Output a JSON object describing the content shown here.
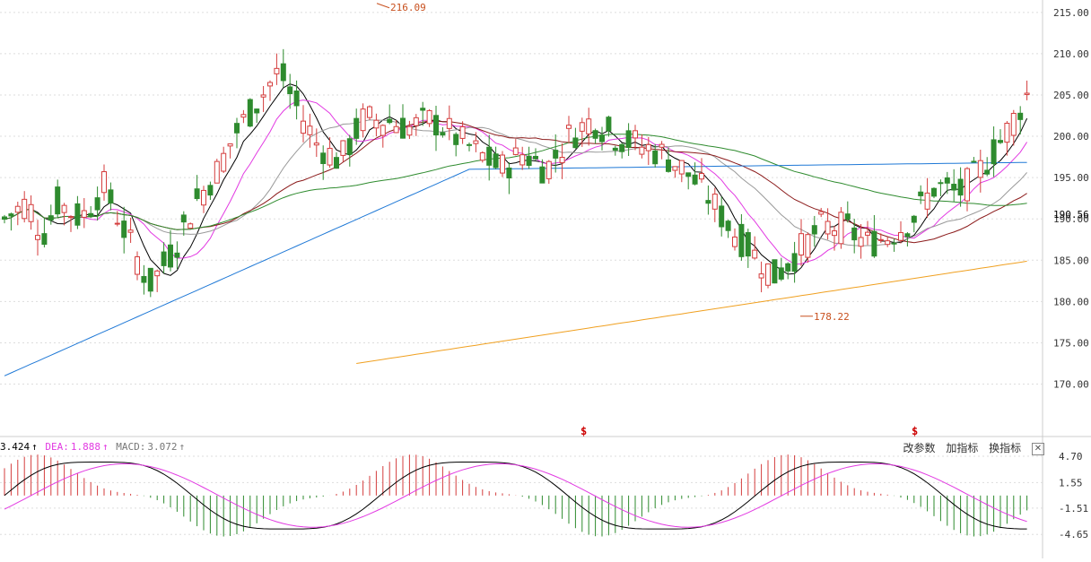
{
  "chart_data": [
    {
      "type": "candlestick",
      "title": "",
      "ylim": [
        165.5,
        216.5
      ],
      "yticks": [
        "215.00",
        "210.00",
        "205.00",
        "200.00",
        "195.00",
        "190.00",
        "185.00",
        "180.00",
        "175.00",
        "170.00"
      ],
      "last_price": "190.56",
      "annotations": {
        "high": "216.09",
        "low": "178.22"
      },
      "signal_markers": [
        "$",
        "$"
      ],
      "series_colors": {
        "up": "#d43d3d",
        "down": "#2e8b2e",
        "ma5": "#000000",
        "ma10": "#e23ae2",
        "ma20": "#999999",
        "ma30": "#8b1a1a",
        "ma60": "#2e8b2e",
        "ma120": "#1e78d6",
        "ma250": "#f0a020"
      }
    },
    {
      "type": "macd",
      "ylim": [
        -7.2,
        6.2
      ],
      "yticks": [
        "4.70",
        "1.55",
        "-1.51",
        "-4.65"
      ],
      "legend": {
        "dif": "3.424",
        "dea_label": "DEA:",
        "dea": "1.888",
        "macd_label": "MACD:",
        "macd": "3.072"
      },
      "buttons": [
        "改参数",
        "加指标",
        "换指标"
      ],
      "close": "✕"
    }
  ]
}
